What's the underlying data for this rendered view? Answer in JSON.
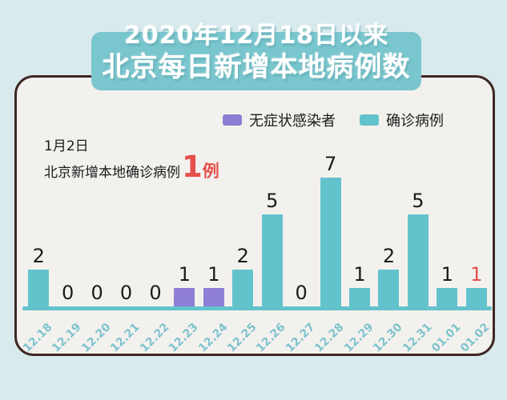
{
  "page": {
    "background": "#D9EAED",
    "card_background": "#F3F1EE",
    "card_border": "#3E2723"
  },
  "header": {
    "title_line1": "2020年12月18日以来",
    "title_line2": "北京每日新增本地病例数",
    "background": "#7AC6CE",
    "text_color": "#FFFFFF"
  },
  "legend": {
    "items": [
      {
        "key": "asymptomatic",
        "label": "无症状感染者",
        "color": "#8F7ED6"
      },
      {
        "key": "confirmed",
        "label": "确诊病例",
        "color": "#63C3CD"
      }
    ]
  },
  "annotation": {
    "line1": "1月2日",
    "line2_prefix": "北京新增本地确诊病例",
    "highlight_value": "1",
    "highlight_unit": "例",
    "highlight_color": "#E4514B"
  },
  "chart_data": {
    "type": "bar",
    "title": "2020年12月18日以来北京每日新增本地病例数",
    "categories": [
      "12.18",
      "12.19",
      "12.20",
      "12.21",
      "12.22",
      "12.23",
      "12.24",
      "12.25",
      "12.26",
      "12.27",
      "12.28",
      "12.29",
      "12.30",
      "12.31",
      "01.01",
      "01.02"
    ],
    "series": [
      {
        "name": "无症状感染者",
        "color": "#8F7ED6",
        "values": [
          0,
          0,
          0,
          0,
          0,
          1,
          1,
          0,
          0,
          0,
          0,
          0,
          0,
          0,
          0,
          0
        ]
      },
      {
        "name": "确诊病例",
        "color": "#63C3CD",
        "values": [
          2,
          0,
          0,
          0,
          0,
          0,
          0,
          2,
          5,
          0,
          7,
          1,
          2,
          5,
          1,
          1
        ]
      }
    ],
    "bars": [
      {
        "date": "12.18",
        "value": 2,
        "series": "确诊病例",
        "color": "#63C3CD",
        "label_color": "#1B1B1B"
      },
      {
        "date": "12.19",
        "value": 0,
        "series": "确诊病例",
        "color": "#63C3CD",
        "label_color": "#1B1B1B"
      },
      {
        "date": "12.20",
        "value": 0,
        "series": "确诊病例",
        "color": "#63C3CD",
        "label_color": "#1B1B1B"
      },
      {
        "date": "12.21",
        "value": 0,
        "series": "确诊病例",
        "color": "#63C3CD",
        "label_color": "#1B1B1B"
      },
      {
        "date": "12.22",
        "value": 0,
        "series": "确诊病例",
        "color": "#63C3CD",
        "label_color": "#1B1B1B"
      },
      {
        "date": "12.23",
        "value": 1,
        "series": "无症状感染者",
        "color": "#8F7ED6",
        "label_color": "#1B1B1B"
      },
      {
        "date": "12.24",
        "value": 1,
        "series": "无症状感染者",
        "color": "#8F7ED6",
        "label_color": "#1B1B1B"
      },
      {
        "date": "12.25",
        "value": 2,
        "series": "确诊病例",
        "color": "#63C3CD",
        "label_color": "#1B1B1B"
      },
      {
        "date": "12.26",
        "value": 5,
        "series": "确诊病例",
        "color": "#63C3CD",
        "label_color": "#1B1B1B"
      },
      {
        "date": "12.27",
        "value": 0,
        "series": "确诊病例",
        "color": "#63C3CD",
        "label_color": "#1B1B1B"
      },
      {
        "date": "12.28",
        "value": 7,
        "series": "确诊病例",
        "color": "#63C3CD",
        "label_color": "#1B1B1B"
      },
      {
        "date": "12.29",
        "value": 1,
        "series": "确诊病例",
        "color": "#63C3CD",
        "label_color": "#1B1B1B"
      },
      {
        "date": "12.30",
        "value": 2,
        "series": "确诊病例",
        "color": "#63C3CD",
        "label_color": "#1B1B1B"
      },
      {
        "date": "12.31",
        "value": 5,
        "series": "确诊病例",
        "color": "#63C3CD",
        "label_color": "#1B1B1B"
      },
      {
        "date": "01.01",
        "value": 1,
        "series": "确诊病例",
        "color": "#63C3CD",
        "label_color": "#1B1B1B"
      },
      {
        "date": "01.02",
        "value": 1,
        "series": "确诊病例",
        "color": "#63C3CD",
        "label_color": "#E4514B"
      }
    ],
    "ylim": [
      0,
      7
    ],
    "value_labels_shown": true,
    "grid": false,
    "legend_position": "top",
    "axis_color": "#63C3CD",
    "tick_label_color": "#7EC3CD"
  }
}
